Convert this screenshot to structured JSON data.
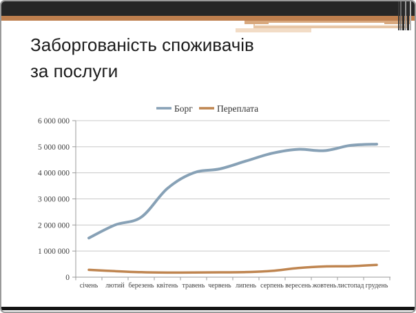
{
  "slide": {
    "title_line1": "Заборгованість споживачів",
    "title_line2": "за послуги"
  },
  "theme": {
    "header_bar_color": "#262626",
    "header_band_color": "#be7f4e",
    "footer_bar_color": "#141414",
    "grid_color": "#c8c8c8",
    "axis_color": "#9a9a9a",
    "label_color": "#404040"
  },
  "chart_data": {
    "type": "line",
    "title": "",
    "xlabel": "",
    "ylabel": "",
    "grid": true,
    "legend_position": "top-center",
    "ylim": [
      0,
      6000000
    ],
    "ytick_step": 1000000,
    "ytick_labels": [
      "0",
      "1 000 000",
      "2 000 000",
      "3 000 000",
      "4 000 000",
      "5 000 000",
      "6 000 000"
    ],
    "categories": [
      "січень",
      "лютий",
      "березень",
      "квітень",
      "травень",
      "червень",
      "липень",
      "серпень",
      "вересень",
      "жовтень",
      "листопад",
      "грудень"
    ],
    "series": [
      {
        "name": "Борг",
        "color": "#87a1b6",
        "width": 4,
        "values": [
          1500000,
          2000000,
          2300000,
          3400000,
          4000000,
          4150000,
          4450000,
          4750000,
          4900000,
          4850000,
          5050000,
          5100000
        ]
      },
      {
        "name": "Переплата",
        "color": "#bf8550",
        "width": 3.5,
        "values": [
          280000,
          230000,
          190000,
          175000,
          180000,
          185000,
          195000,
          240000,
          350000,
          410000,
          420000,
          470000
        ]
      }
    ]
  }
}
